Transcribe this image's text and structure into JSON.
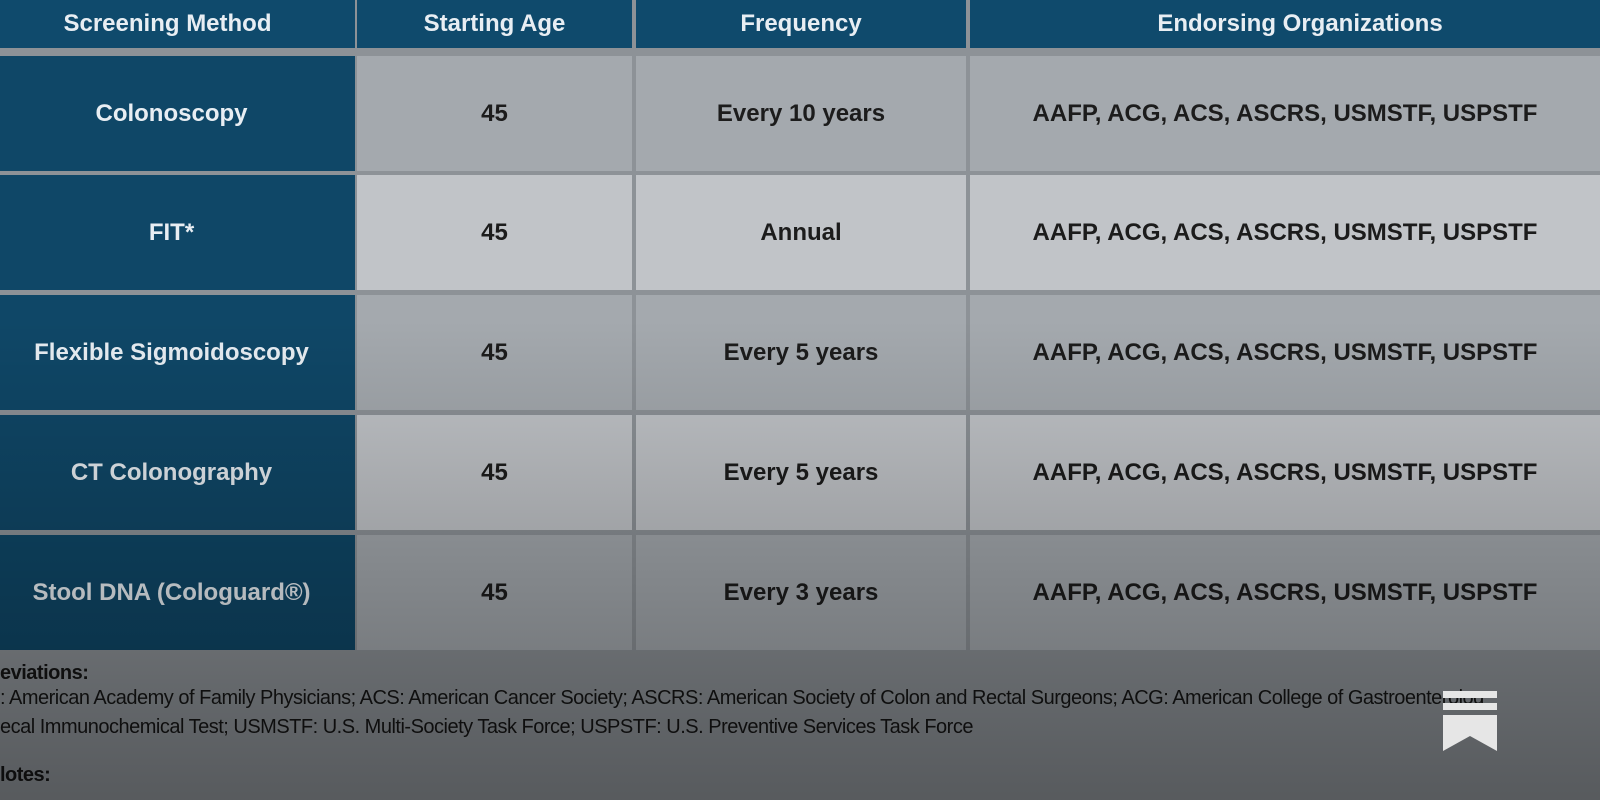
{
  "table": {
    "header": [
      "Screening Method",
      "Starting Age",
      "Frequency",
      "Endorsing Organizations"
    ],
    "rows": [
      [
        "Colonoscopy",
        "45",
        "Every 10 years",
        "AAFP, ACG, ACS, ASCRS, USMSTF, USPSTF"
      ],
      [
        "FIT*",
        "45",
        "Annual",
        "AAFP, ACG, ACS, ASCRS, USMSTF, USPSTF"
      ],
      [
        "Flexible Sigmoidoscopy",
        "45",
        "Every 5 years",
        "AAFP, ACG, ACS, ASCRS, USMSTF, USPSTF"
      ],
      [
        "CT Colonography",
        "45",
        "Every 5 years",
        "AAFP, ACG, ACS, ASCRS, USMSTF, USPSTF"
      ],
      [
        "Stool DNA (Cologuard®)",
        "45",
        "Every 3 years",
        "AAFP, ACG, ACS, ASCRS, USMSTF, USPSTF"
      ]
    ]
  },
  "footnotes": {
    "abbreviations_heading": "eviations:",
    "lines": [
      ": American Academy of Family Physicians;  ACS: American Cancer Society;  ASCRS: American Society of Colon and Rectal Surgeons;  ACG: American College of Gastroenterolog",
      "ecal Immunochemical Test;  USMSTF: U.S. Multi-Society Task Force;  USPSTF: U.S. Preventive Services Task Force"
    ],
    "notes_heading": "lotes:"
  }
}
